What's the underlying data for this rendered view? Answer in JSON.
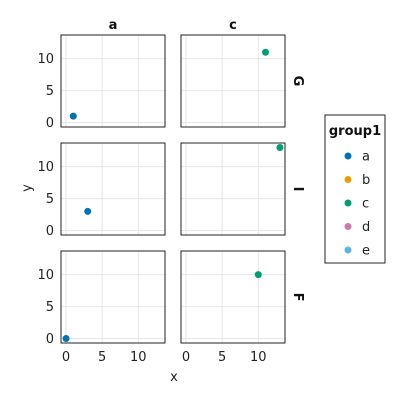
{
  "chart_data": {
    "type": "scatter",
    "xlabel": "x",
    "ylabel": "y",
    "xlim": [
      -0.7,
      13.7
    ],
    "ylim": [
      -0.7,
      13.7
    ],
    "x_ticks": [
      0,
      5,
      10
    ],
    "y_ticks": [
      0,
      5,
      10
    ],
    "grid": true,
    "columns": [
      "a",
      "c"
    ],
    "rows": [
      "G",
      "I",
      "F"
    ],
    "legend": {
      "title": "group1",
      "placement": "right",
      "entries": [
        {
          "label": "a",
          "color": "#0072B2"
        },
        {
          "label": "b",
          "color": "#E69F00"
        },
        {
          "label": "c",
          "color": "#009E73"
        },
        {
          "label": "d",
          "color": "#CC79A7"
        },
        {
          "label": "e",
          "color": "#56B4E9"
        }
      ]
    },
    "points": [
      {
        "col": "a",
        "row": "G",
        "group": "a",
        "x": 1,
        "y": 1
      },
      {
        "col": "c",
        "row": "G",
        "group": "c",
        "x": 11,
        "y": 11
      },
      {
        "col": "a",
        "row": "I",
        "group": "a",
        "x": 3,
        "y": 3
      },
      {
        "col": "c",
        "row": "I",
        "group": "c",
        "x": 13,
        "y": 13
      },
      {
        "col": "a",
        "row": "F",
        "group": "a",
        "x": 0,
        "y": 0
      },
      {
        "col": "c",
        "row": "F",
        "group": "c",
        "x": 10,
        "y": 10
      }
    ]
  }
}
